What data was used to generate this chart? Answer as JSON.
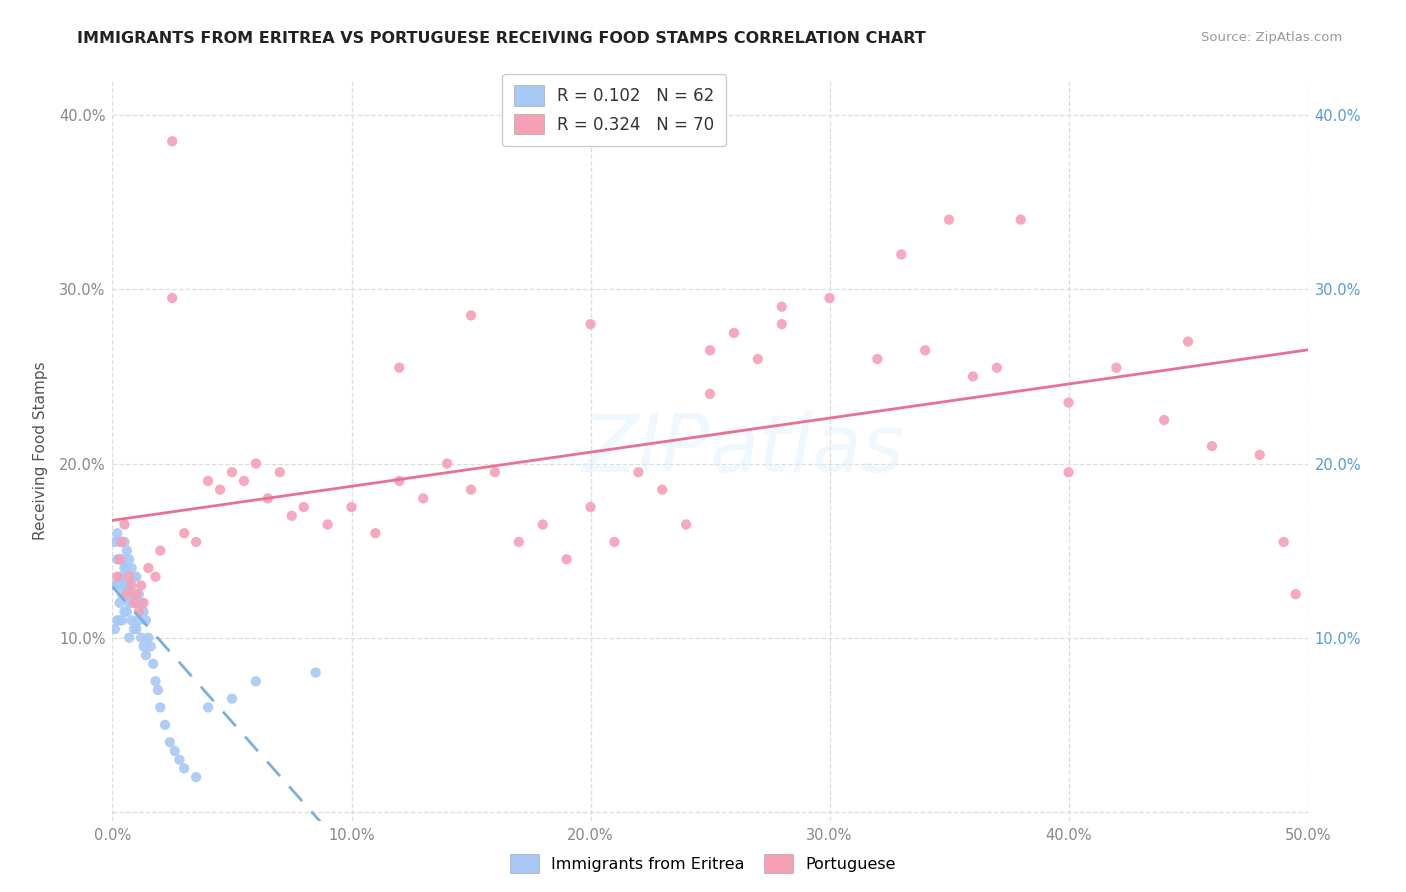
{
  "title": "IMMIGRANTS FROM ERITREA VS PORTUGUESE RECEIVING FOOD STAMPS CORRELATION CHART",
  "source": "Source: ZipAtlas.com",
  "ylabel": "Receiving Food Stamps",
  "xlim": [
    0.0,
    0.5
  ],
  "ylim": [
    -0.005,
    0.42
  ],
  "xticks": [
    0.0,
    0.1,
    0.2,
    0.3,
    0.4,
    0.5
  ],
  "yticks": [
    0.0,
    0.1,
    0.2,
    0.3,
    0.4
  ],
  "xtick_labels": [
    "0.0%",
    "10.0%",
    "20.0%",
    "30.0%",
    "40.0%",
    "50.0%"
  ],
  "ytick_labels_left": [
    "",
    "10.0%",
    "20.0%",
    "30.0%",
    "40.0%"
  ],
  "ytick_labels_right": [
    "",
    "10.0%",
    "20.0%",
    "30.0%",
    "40.0%"
  ],
  "series1_color": "#a8c8f5",
  "series2_color": "#f5a0b5",
  "series1_line_color": "#7ab0e0",
  "series2_line_color": "#e87090",
  "watermark": "ZIPatlas",
  "series1_R": 0.102,
  "series1_N": 62,
  "series2_R": 0.324,
  "series2_N": 70,
  "series1_x": [
    0.001,
    0.001,
    0.001,
    0.002,
    0.002,
    0.002,
    0.002,
    0.003,
    0.003,
    0.003,
    0.003,
    0.003,
    0.004,
    0.004,
    0.004,
    0.004,
    0.004,
    0.005,
    0.005,
    0.005,
    0.005,
    0.006,
    0.006,
    0.006,
    0.006,
    0.007,
    0.007,
    0.007,
    0.007,
    0.008,
    0.008,
    0.008,
    0.009,
    0.009,
    0.009,
    0.01,
    0.01,
    0.01,
    0.011,
    0.011,
    0.012,
    0.012,
    0.013,
    0.013,
    0.014,
    0.014,
    0.015,
    0.016,
    0.017,
    0.018,
    0.019,
    0.02,
    0.022,
    0.024,
    0.026,
    0.028,
    0.03,
    0.035,
    0.04,
    0.05,
    0.06,
    0.085
  ],
  "series1_y": [
    0.155,
    0.13,
    0.105,
    0.16,
    0.145,
    0.13,
    0.11,
    0.155,
    0.145,
    0.135,
    0.12,
    0.11,
    0.155,
    0.145,
    0.135,
    0.125,
    0.11,
    0.155,
    0.14,
    0.13,
    0.115,
    0.15,
    0.14,
    0.13,
    0.115,
    0.145,
    0.13,
    0.12,
    0.1,
    0.14,
    0.125,
    0.11,
    0.135,
    0.12,
    0.105,
    0.135,
    0.12,
    0.105,
    0.125,
    0.11,
    0.12,
    0.1,
    0.115,
    0.095,
    0.11,
    0.09,
    0.1,
    0.095,
    0.085,
    0.075,
    0.07,
    0.06,
    0.05,
    0.04,
    0.035,
    0.03,
    0.025,
    0.02,
    0.06,
    0.065,
    0.075,
    0.08
  ],
  "series2_x": [
    0.002,
    0.003,
    0.004,
    0.005,
    0.006,
    0.007,
    0.008,
    0.009,
    0.01,
    0.011,
    0.012,
    0.013,
    0.015,
    0.018,
    0.02,
    0.025,
    0.03,
    0.035,
    0.04,
    0.045,
    0.05,
    0.055,
    0.06,
    0.065,
    0.07,
    0.075,
    0.08,
    0.09,
    0.1,
    0.11,
    0.12,
    0.13,
    0.14,
    0.15,
    0.16,
    0.17,
    0.18,
    0.19,
    0.2,
    0.21,
    0.22,
    0.23,
    0.24,
    0.25,
    0.26,
    0.27,
    0.28,
    0.3,
    0.32,
    0.34,
    0.36,
    0.37,
    0.38,
    0.4,
    0.42,
    0.44,
    0.46,
    0.48,
    0.49,
    0.495,
    0.025,
    0.15,
    0.2,
    0.28,
    0.35,
    0.12,
    0.25,
    0.33,
    0.4,
    0.45
  ],
  "series2_y": [
    0.135,
    0.145,
    0.155,
    0.165,
    0.125,
    0.135,
    0.13,
    0.12,
    0.125,
    0.115,
    0.13,
    0.12,
    0.14,
    0.135,
    0.15,
    0.385,
    0.16,
    0.155,
    0.19,
    0.185,
    0.195,
    0.19,
    0.2,
    0.18,
    0.195,
    0.17,
    0.175,
    0.165,
    0.175,
    0.16,
    0.19,
    0.18,
    0.2,
    0.185,
    0.195,
    0.155,
    0.165,
    0.145,
    0.175,
    0.155,
    0.195,
    0.185,
    0.165,
    0.265,
    0.275,
    0.26,
    0.28,
    0.295,
    0.26,
    0.265,
    0.25,
    0.255,
    0.34,
    0.235,
    0.255,
    0.225,
    0.21,
    0.205,
    0.155,
    0.125,
    0.295,
    0.285,
    0.28,
    0.29,
    0.34,
    0.255,
    0.24,
    0.32,
    0.195,
    0.27
  ]
}
